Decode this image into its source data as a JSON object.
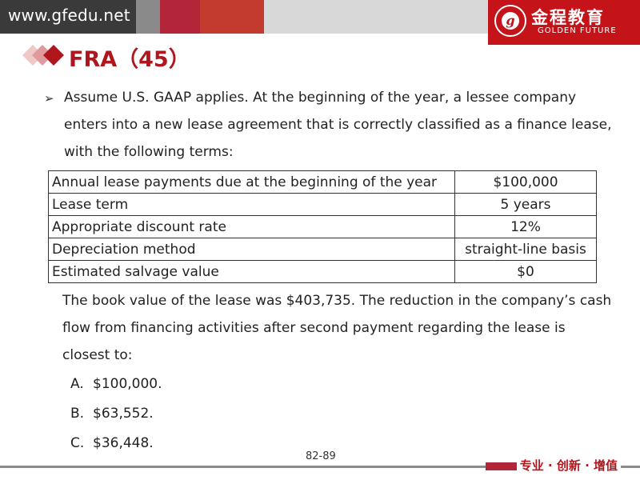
{
  "header": {
    "site_url": "www.gfedu.net",
    "logo_cn": "金程教育",
    "logo_en": "GOLDEN FUTURE",
    "logo_letter": "g"
  },
  "title": "FRA（45）",
  "question": {
    "intro": "Assume U.S. GAAP applies. At the beginning of the year, a lessee company enters into a new lease agreement that is correctly classified as a finance lease, with the following terms:",
    "terms": [
      {
        "label": "Annual lease payments due at the beginning of the year",
        "value": "$100,000"
      },
      {
        "label": "Lease term",
        "value": "5 years"
      },
      {
        "label": "Appropriate discount rate",
        "value": "12%"
      },
      {
        "label": "Depreciation method",
        "value": "straight-line basis"
      },
      {
        "label": "Estimated salvage value",
        "value": "$0"
      }
    ],
    "prompt": "The book value of the lease was $403,735. The reduction in the company’s cash flow from financing activities after second payment regarding the lease is closest to:",
    "options": [
      {
        "letter": "A.",
        "text": "$100,000."
      },
      {
        "letter": "B.",
        "text": "$63,552."
      },
      {
        "letter": "C.",
        "text": "$36,448."
      }
    ]
  },
  "footer": {
    "page_number": "82-89",
    "slogan": "专业 · 创新 · 增值"
  },
  "colors": {
    "brand_red": "#c4141a",
    "title_red": "#b0161e"
  }
}
